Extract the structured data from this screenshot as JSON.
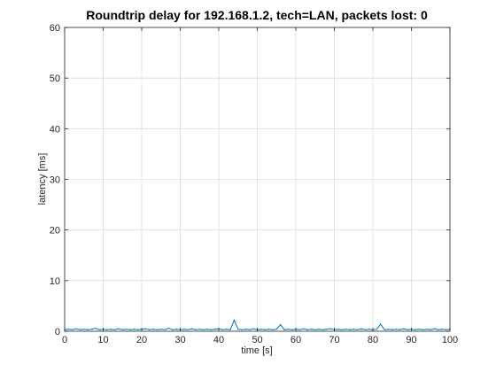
{
  "chart_data": {
    "type": "line",
    "title": "Roundtrip delay for 192.168.1.2, tech=LAN, packets lost: 0",
    "xlabel": "time [s]",
    "ylabel": "latency [ms]",
    "xlim": [
      0,
      100
    ],
    "ylim": [
      0,
      60
    ],
    "xticks": [
      0,
      10,
      20,
      30,
      40,
      50,
      60,
      70,
      80,
      90,
      100
    ],
    "yticks": [
      0,
      10,
      20,
      30,
      40,
      50,
      60
    ],
    "xtick_labels": [
      "0",
      "10",
      "20",
      "30",
      "40",
      "50",
      "60",
      "70",
      "80",
      "90",
      "100"
    ],
    "ytick_labels": [
      "0",
      "10",
      "20",
      "30",
      "40",
      "50",
      "60"
    ],
    "grid": true,
    "series": [
      {
        "color": "#0072bd",
        "x": [
          0,
          1,
          2,
          3,
          4,
          5,
          6,
          7,
          8,
          9,
          10,
          11,
          12,
          13,
          14,
          15,
          16,
          17,
          18,
          19,
          20,
          21,
          22,
          23,
          24,
          25,
          26,
          27,
          28,
          29,
          30,
          31,
          32,
          33,
          34,
          35,
          36,
          37,
          38,
          39,
          40,
          41,
          42,
          43,
          44,
          45,
          46,
          47,
          48,
          49,
          50,
          51,
          52,
          53,
          54,
          55,
          56,
          57,
          58,
          59,
          60,
          61,
          62,
          63,
          64,
          65,
          66,
          67,
          68,
          69,
          70,
          71,
          72,
          73,
          74,
          75,
          76,
          77,
          78,
          79,
          80,
          81,
          82,
          83,
          84,
          85,
          86,
          87,
          88,
          89,
          90,
          91,
          92,
          93,
          94,
          95,
          96,
          97,
          98,
          99,
          100
        ],
        "y": [
          0.3,
          0.4,
          0.3,
          0.5,
          0.3,
          0.4,
          0.3,
          0.4,
          0.6,
          0.3,
          0.4,
          0.3,
          0.4,
          0.3,
          0.5,
          0.3,
          0.4,
          0.3,
          0.4,
          0.3,
          0.4,
          0.5,
          0.3,
          0.4,
          0.3,
          0.4,
          0.3,
          0.6,
          0.3,
          0.4,
          0.3,
          0.4,
          0.3,
          0.5,
          0.3,
          0.4,
          0.3,
          0.4,
          0.3,
          0.4,
          0.5,
          0.3,
          0.4,
          0.3,
          2.2,
          0.4,
          0.3,
          0.4,
          0.3,
          0.5,
          0.3,
          0.4,
          0.3,
          0.4,
          0.3,
          0.4,
          1.3,
          0.3,
          0.4,
          0.3,
          0.4,
          0.3,
          0.5,
          0.3,
          0.4,
          0.3,
          0.4,
          0.3,
          0.4,
          0.5,
          0.3,
          0.4,
          0.3,
          0.4,
          0.3,
          0.4,
          0.3,
          0.5,
          0.3,
          0.4,
          0.3,
          0.4,
          1.4,
          0.3,
          0.4,
          0.3,
          0.4,
          0.3,
          0.5,
          0.3,
          0.4,
          0.3,
          0.4,
          0.3,
          0.4,
          0.3,
          0.5,
          0.3,
          0.4,
          0.3,
          0.4
        ]
      }
    ]
  }
}
